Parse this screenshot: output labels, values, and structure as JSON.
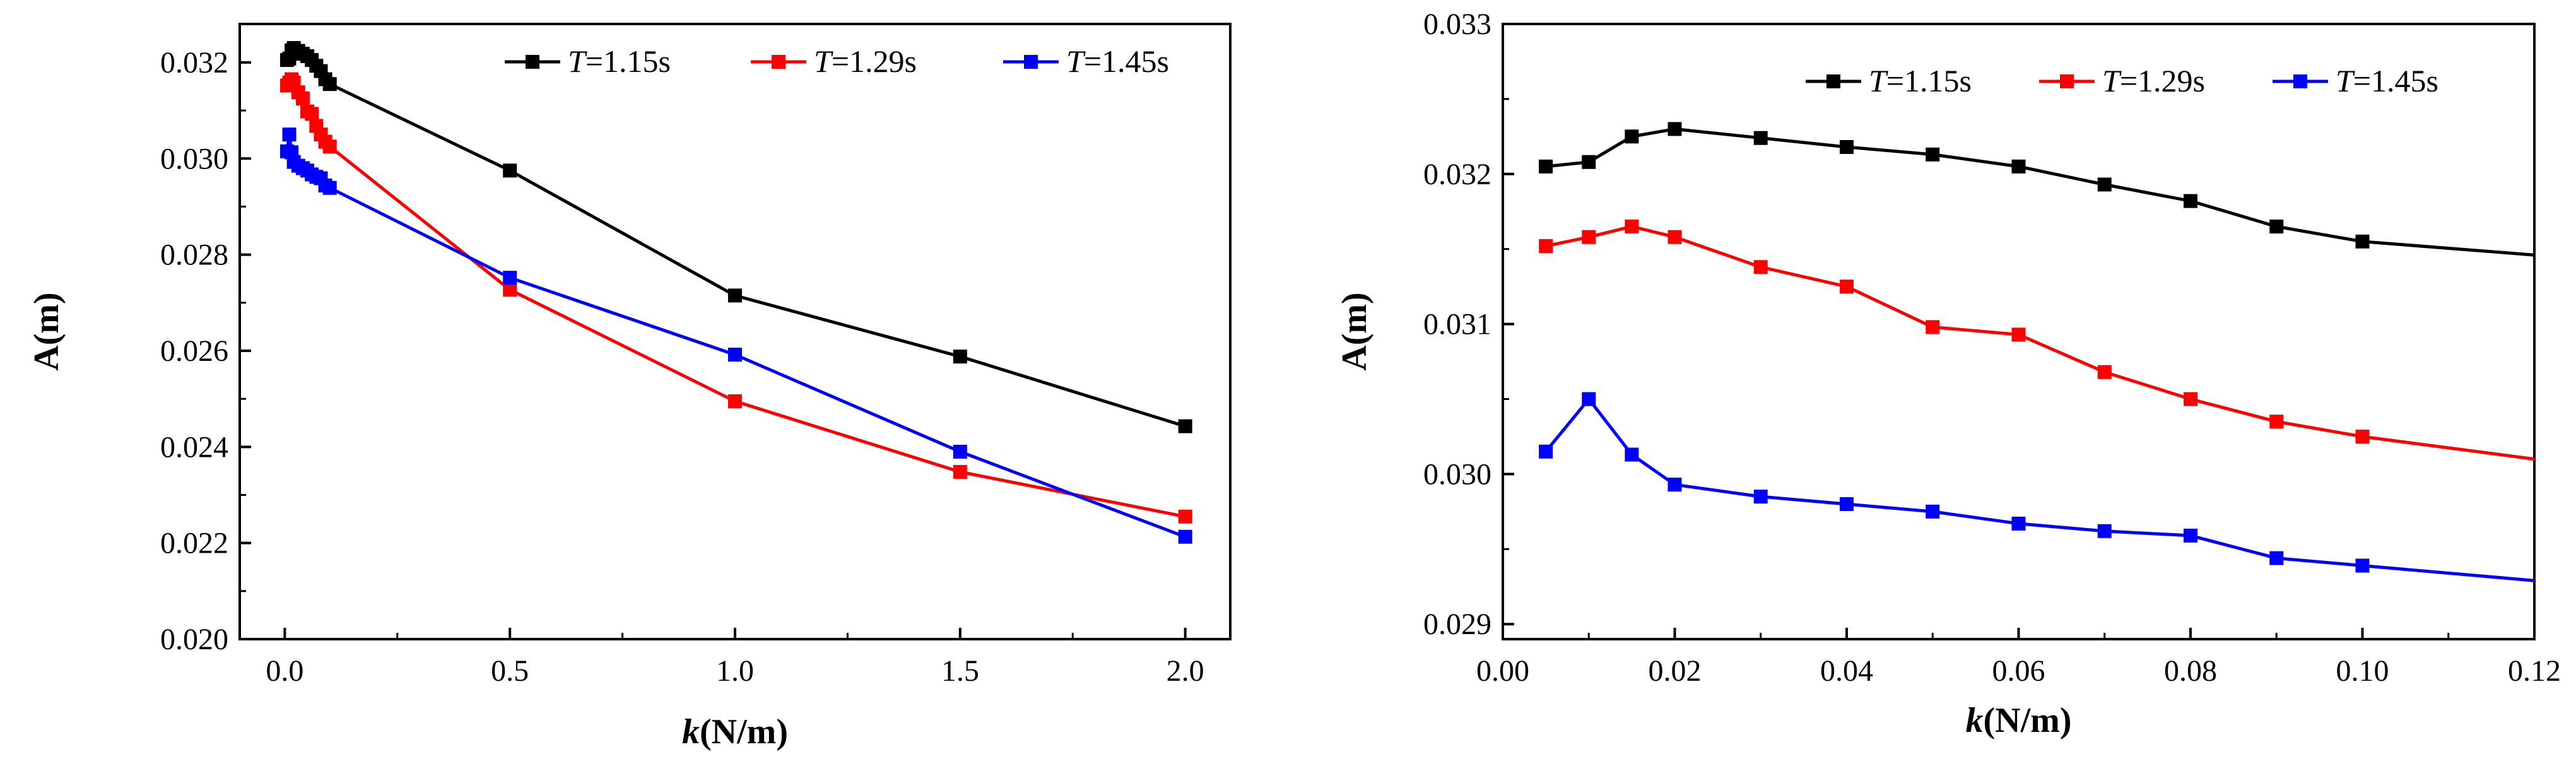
{
  "chart_data": [
    {
      "type": "line",
      "title": "",
      "xlabel": {
        "italic": "k",
        "rest": "(N/m)"
      },
      "ylabel": "A(m)",
      "xlim": [
        -0.1,
        2.1
      ],
      "ylim": [
        0.02,
        0.0328
      ],
      "xticks": [
        0.0,
        0.5,
        1.0,
        1.5,
        2.0
      ],
      "xtick_labels": [
        "0.0",
        "0.5",
        "1.0",
        "1.5",
        "2.0"
      ],
      "yticks": [
        0.02,
        0.022,
        0.024,
        0.026,
        0.028,
        0.03,
        0.032
      ],
      "ytick_labels": [
        "0.020",
        "0.022",
        "0.024",
        "0.026",
        "0.028",
        "0.030",
        "0.032"
      ],
      "grid": false,
      "legend_position": "top-right",
      "series": [
        {
          "name": "T=1.15s",
          "italic": "T",
          "rest": "=1.15s",
          "color": "#000000",
          "x": [
            0.005,
            0.01,
            0.015,
            0.02,
            0.03,
            0.04,
            0.05,
            0.06,
            0.07,
            0.08,
            0.09,
            0.1,
            0.5,
            1.0,
            1.5,
            2.0
          ],
          "y": [
            0.03205,
            0.03208,
            0.03225,
            0.0323,
            0.03224,
            0.03218,
            0.03213,
            0.03205,
            0.03193,
            0.03182,
            0.03165,
            0.03155,
            0.02975,
            0.02715,
            0.02588,
            0.02443
          ]
        },
        {
          "name": "T=1.29s",
          "italic": "T",
          "rest": "=1.29s",
          "color": "#ff0000",
          "x": [
            0.005,
            0.01,
            0.015,
            0.02,
            0.03,
            0.04,
            0.05,
            0.06,
            0.07,
            0.08,
            0.09,
            0.1,
            0.5,
            1.0,
            1.5,
            2.0
          ],
          "y": [
            0.03152,
            0.03158,
            0.03165,
            0.03158,
            0.03138,
            0.03125,
            0.03098,
            0.03093,
            0.03068,
            0.0305,
            0.03035,
            0.03025,
            0.02727,
            0.02495,
            0.02348,
            0.02255
          ]
        },
        {
          "name": "T=1.45s",
          "italic": "T",
          "rest": "=1.45s",
          "color": "#0000ff",
          "x": [
            0.005,
            0.01,
            0.015,
            0.02,
            0.03,
            0.04,
            0.05,
            0.06,
            0.07,
            0.08,
            0.09,
            0.1,
            0.5,
            1.0,
            1.5,
            2.0
          ],
          "y": [
            0.03015,
            0.0305,
            0.03013,
            0.02993,
            0.02985,
            0.0298,
            0.02975,
            0.02967,
            0.02962,
            0.02959,
            0.02944,
            0.02939,
            0.02752,
            0.02592,
            0.0239,
            0.02213
          ]
        }
      ]
    },
    {
      "type": "line",
      "title": "",
      "xlabel": {
        "italic": "k",
        "rest": "(N/m)"
      },
      "ylabel": "A(m)",
      "xlim": [
        0.0,
        0.12
      ],
      "ylim": [
        0.0289,
        0.033
      ],
      "xticks": [
        0.0,
        0.02,
        0.04,
        0.06,
        0.08,
        0.1,
        0.12
      ],
      "xtick_labels": [
        "0.00",
        "0.02",
        "0.04",
        "0.06",
        "0.08",
        "0.10",
        "0.12"
      ],
      "yticks": [
        0.029,
        0.03,
        0.031,
        0.032,
        0.033
      ],
      "ytick_labels": [
        "0.029",
        "0.030",
        "0.031",
        "0.032",
        "0.033"
      ],
      "grid": false,
      "legend_position": "top-right",
      "series": [
        {
          "name": "T=1.15s",
          "italic": "T",
          "rest": "=1.15s",
          "color": "#000000",
          "x": [
            0.005,
            0.01,
            0.015,
            0.02,
            0.03,
            0.04,
            0.05,
            0.06,
            0.07,
            0.08,
            0.09,
            0.1,
            0.12
          ],
          "y": [
            0.03205,
            0.03208,
            0.03225,
            0.0323,
            0.03224,
            0.03218,
            0.03213,
            0.03205,
            0.03193,
            0.03182,
            0.03165,
            0.03155,
            0.03146
          ],
          "marker_count": 12
        },
        {
          "name": "T=1.29s",
          "italic": "T",
          "rest": "=1.29s",
          "color": "#ff0000",
          "x": [
            0.005,
            0.01,
            0.015,
            0.02,
            0.03,
            0.04,
            0.05,
            0.06,
            0.07,
            0.08,
            0.09,
            0.1,
            0.12
          ],
          "y": [
            0.03152,
            0.03158,
            0.03165,
            0.03158,
            0.03138,
            0.03125,
            0.03098,
            0.03093,
            0.03068,
            0.0305,
            0.03035,
            0.03025,
            0.0301
          ],
          "marker_count": 12
        },
        {
          "name": "T=1.45s",
          "italic": "T",
          "rest": "=1.45s",
          "color": "#0000ff",
          "x": [
            0.005,
            0.01,
            0.015,
            0.02,
            0.03,
            0.04,
            0.05,
            0.06,
            0.07,
            0.08,
            0.09,
            0.1,
            0.12
          ],
          "y": [
            0.03015,
            0.0305,
            0.03013,
            0.02993,
            0.02985,
            0.0298,
            0.02975,
            0.02967,
            0.02962,
            0.02959,
            0.02944,
            0.02939,
            0.02929
          ],
          "marker_count": 12
        }
      ]
    }
  ]
}
